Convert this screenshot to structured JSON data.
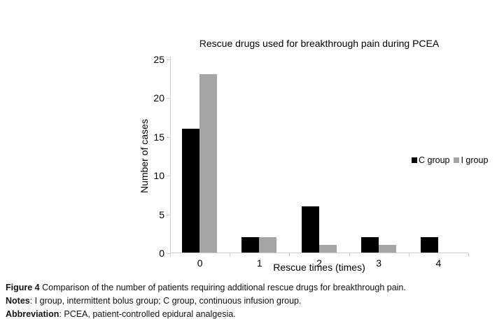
{
  "chart_data": {
    "type": "bar",
    "title": "Rescue drugs used for breakthrough pain during PCEA",
    "xlabel": "Rescue times (times)",
    "ylabel": "Number of cases",
    "categories": [
      "0",
      "1",
      "2",
      "3",
      "4"
    ],
    "series": [
      {
        "name": "C group",
        "color": "#000000",
        "values": [
          16,
          2,
          6,
          2,
          2
        ]
      },
      {
        "name": "I group",
        "color": "#a5a5a5",
        "values": [
          23,
          2,
          1,
          1,
          0
        ]
      }
    ],
    "ylim": [
      0,
      25
    ],
    "ytick_step": 5,
    "grid": false,
    "legend_position": "right"
  },
  "caption": {
    "figure_label": "Figure 4",
    "figure_text": " Comparison of the number of patients requiring additional rescue drugs for breakthrough pain.",
    "notes_label": "Notes",
    "notes_text": ": I group, intermittent bolus group; C group, continuous infusion group.",
    "abbrev_label": "Abbreviation",
    "abbrev_text": ": PCEA, patient-controlled epidural analgesia."
  },
  "colors": {
    "axis": "#cdcdcd",
    "bar_c": "#000000",
    "bar_i": "#a5a5a5",
    "text": "#111111"
  }
}
